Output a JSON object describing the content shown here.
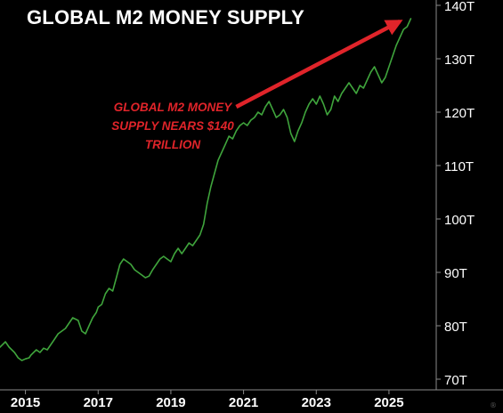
{
  "chart_data": {
    "type": "line",
    "title": "GLOBAL M2 MONEY SUPPLY",
    "annotation_lines": [
      "GLOBAL M2 MONEY",
      "SUPPLY NEARS $140",
      "TRILLION"
    ],
    "xlabel": "",
    "ylabel": "",
    "x_axis_ticks": [
      "2015",
      "2017",
      "2019",
      "2021",
      "2023",
      "2025"
    ],
    "y_axis_ticks": [
      "70T",
      "80T",
      "90T",
      "100T",
      "110T",
      "120T",
      "130T",
      "140T"
    ],
    "xlim": [
      2014.3,
      2026.3
    ],
    "ylim": [
      68,
      141
    ],
    "y_axis_position": "right",
    "grid": false,
    "legend": "none",
    "series": [
      {
        "x": [
          2014.3,
          2014.45,
          2014.55,
          2014.7,
          2014.8,
          2014.9,
          2015.0,
          2015.1,
          2015.15,
          2015.3,
          2015.4,
          2015.5,
          2015.6,
          2015.7,
          2015.8,
          2015.9,
          2016.0,
          2016.1,
          2016.2,
          2016.3,
          2016.45,
          2016.55,
          2016.65,
          2016.75,
          2016.85,
          2016.95,
          2017.0,
          2017.1,
          2017.2,
          2017.3,
          2017.4,
          2017.5,
          2017.6,
          2017.7,
          2017.8,
          2017.9,
          2018.0,
          2018.1,
          2018.2,
          2018.3,
          2018.4,
          2018.5,
          2018.6,
          2018.7,
          2018.8,
          2018.9,
          2019.0,
          2019.1,
          2019.2,
          2019.3,
          2019.4,
          2019.5,
          2019.6,
          2019.7,
          2019.8,
          2019.9,
          2020.0,
          2020.1,
          2020.2,
          2020.3,
          2020.4,
          2020.5,
          2020.6,
          2020.7,
          2020.8,
          2020.9,
          2021.0,
          2021.1,
          2021.2,
          2021.3,
          2021.4,
          2021.5,
          2021.6,
          2021.7,
          2021.8,
          2021.9,
          2022.0,
          2022.1,
          2022.2,
          2022.3,
          2022.4,
          2022.5,
          2022.6,
          2022.7,
          2022.8,
          2022.9,
          2023.0,
          2023.1,
          2023.2,
          2023.3,
          2023.4,
          2023.5,
          2023.6,
          2023.7,
          2023.8,
          2023.9,
          2024.0,
          2024.1,
          2024.2,
          2024.3,
          2024.4,
          2024.5,
          2024.6,
          2024.7,
          2024.8,
          2024.9,
          2025.0,
          2025.1,
          2025.2,
          2025.3,
          2025.4,
          2025.5,
          2025.6
        ],
        "values": [
          76.0,
          77.0,
          76.0,
          75.0,
          74.0,
          73.5,
          73.8,
          74.0,
          74.5,
          75.5,
          75.0,
          75.8,
          75.5,
          76.5,
          77.5,
          78.5,
          79.0,
          79.5,
          80.5,
          81.5,
          81.0,
          79.0,
          78.5,
          80.0,
          81.5,
          82.5,
          83.5,
          84.0,
          86.0,
          87.0,
          86.5,
          89.0,
          91.5,
          92.5,
          92.0,
          91.5,
          90.5,
          90.0,
          89.5,
          89.0,
          89.3,
          90.5,
          91.5,
          92.5,
          93.0,
          92.5,
          92.0,
          93.5,
          94.5,
          93.5,
          94.5,
          95.5,
          95.0,
          96.0,
          97.0,
          99.0,
          103.0,
          106.0,
          108.5,
          111.0,
          112.5,
          114.0,
          115.5,
          115.0,
          116.5,
          117.5,
          118.0,
          117.5,
          118.5,
          119.0,
          120.0,
          119.5,
          121.0,
          122.0,
          120.5,
          119.0,
          119.5,
          120.5,
          119.0,
          116.0,
          114.5,
          116.5,
          118.0,
          120.0,
          121.5,
          122.5,
          121.5,
          123.0,
          121.5,
          119.5,
          120.5,
          123.0,
          122.0,
          123.5,
          124.5,
          125.5,
          124.5,
          123.5,
          125.0,
          124.5,
          126.0,
          127.5,
          128.5,
          127.0,
          125.5,
          126.5,
          128.5,
          130.5,
          132.5,
          134.0,
          135.5,
          136.0,
          137.5
        ]
      }
    ],
    "line_color": "#3fa43c",
    "annotation_color": "#e0242a",
    "arrow_from": [
      2020.8,
      121.0
    ],
    "arrow_to": [
      2025.3,
      137.0
    ]
  },
  "watermark": "®"
}
